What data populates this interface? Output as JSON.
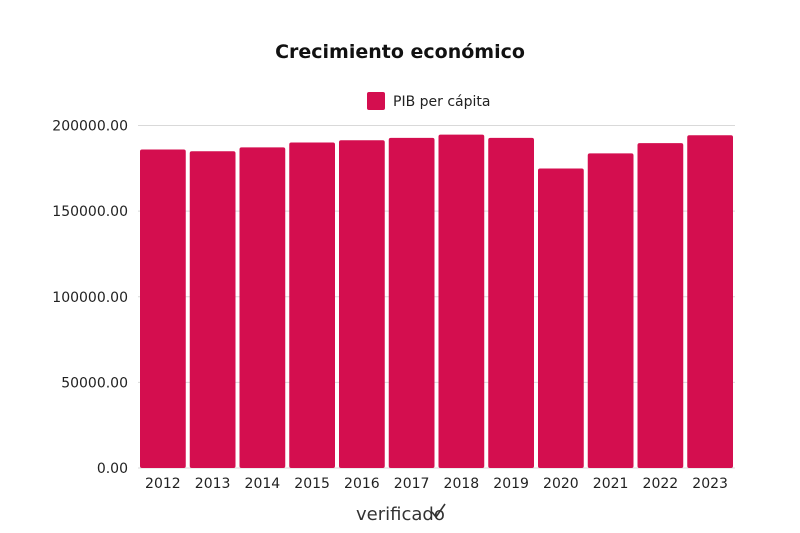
{
  "chart_data": {
    "type": "bar",
    "title": "Crecimiento económico",
    "xlabel": "",
    "ylabel": "",
    "categories": [
      "2012",
      "2013",
      "2014",
      "2015",
      "2016",
      "2017",
      "2018",
      "2019",
      "2020",
      "2021",
      "2022",
      "2023"
    ],
    "series": [
      {
        "name": "PIB per cápita",
        "color": "#D40E4F",
        "values": [
          186000,
          185000,
          187200,
          190100,
          191400,
          192800,
          194700,
          192800,
          174900,
          183700,
          189700,
          194300
        ]
      }
    ],
    "ylim": [
      0,
      200000
    ],
    "yticks": [
      "0.00",
      "50000.00",
      "100000.00",
      "150000.00",
      "200000.00"
    ],
    "grid": true,
    "legend_position": "top"
  },
  "branding": {
    "logo_text": "verificado"
  }
}
